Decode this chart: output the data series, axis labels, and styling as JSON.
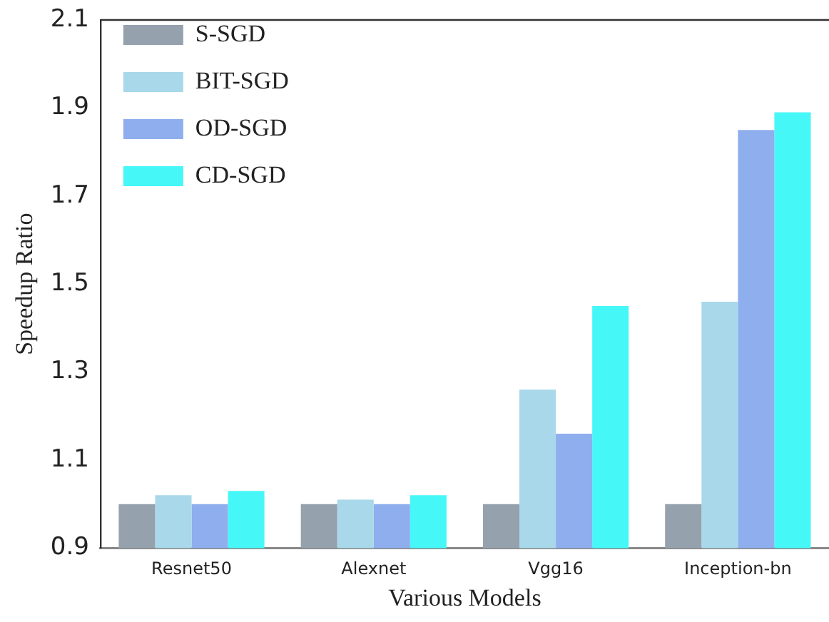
{
  "chart_data": {
    "type": "bar",
    "xlabel": "Various Models",
    "ylabel": "Speedup Ratio",
    "categories": [
      "Resnet50",
      "Alexnet",
      "Vgg16",
      "Inception-bn"
    ],
    "series": [
      {
        "name": "S-SGD",
        "color": "#95a1ad",
        "values": [
          1.0,
          1.0,
          1.0,
          1.0
        ]
      },
      {
        "name": "BIT-SGD",
        "color": "#a8d8ea",
        "values": [
          1.02,
          1.01,
          1.26,
          1.46
        ]
      },
      {
        "name": "OD-SGD",
        "color": "#8faeee",
        "values": [
          1.0,
          1.0,
          1.16,
          1.85
        ]
      },
      {
        "name": "CD-SGD",
        "color": "#46f7f7",
        "values": [
          1.03,
          1.02,
          1.45,
          1.89
        ]
      }
    ],
    "ylim": [
      0.9,
      2.1
    ],
    "yticks": [
      0.9,
      1.1,
      1.3,
      1.5,
      1.7,
      1.9,
      2.1
    ],
    "grid": false,
    "legend": "top left"
  }
}
